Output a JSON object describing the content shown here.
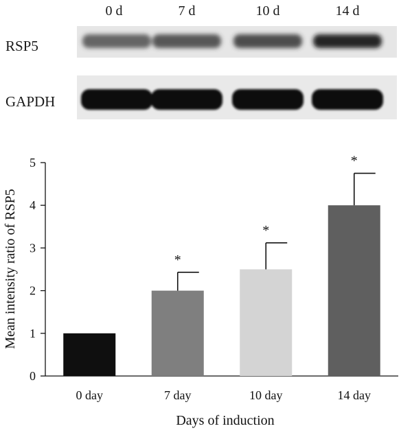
{
  "blot": {
    "lanes": [
      "0 d",
      "7 d",
      "10 d",
      "14 d"
    ],
    "rows": [
      {
        "label": "RSP5",
        "intensities": [
          0.55,
          0.62,
          0.66,
          0.85
        ]
      },
      {
        "label": "GAPDH",
        "intensities": [
          1.0,
          1.0,
          1.0,
          1.0
        ]
      }
    ]
  },
  "chart_data": {
    "type": "bar",
    "title": "",
    "xlabel": "Days of induction",
    "ylabel": "Mean intensity ratio of RSP5",
    "categories": [
      "0 day",
      "7 day",
      "10 day",
      "14 day"
    ],
    "values": [
      1.0,
      2.0,
      2.5,
      4.0
    ],
    "errors": [
      0,
      0.43,
      0.62,
      0.75
    ],
    "significance": [
      "",
      "*",
      "*",
      "*"
    ],
    "colors": [
      "#0f0f0f",
      "#7f7f7f",
      "#d4d4d4",
      "#5f5f5f"
    ],
    "ylim": [
      0,
      5
    ],
    "yticks": [
      0,
      1,
      2,
      3,
      4,
      5
    ],
    "grid": false,
    "legend": "none"
  }
}
